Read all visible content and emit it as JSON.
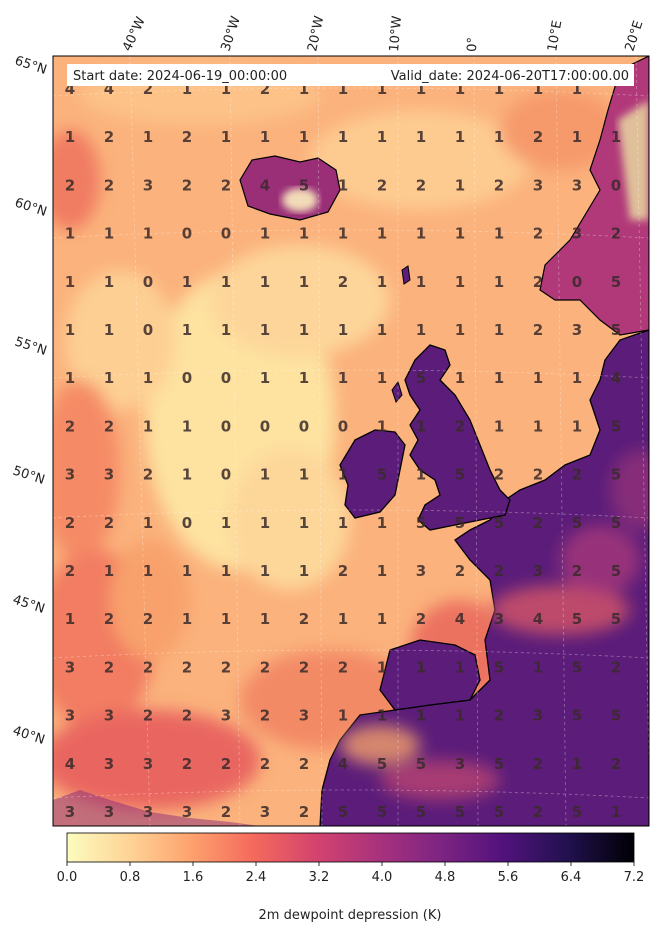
{
  "header": {
    "start_date": "Start date: 2024-06-19_00:00:00",
    "valid_date": "Valid_date: 2024-06-20T17:00:00.00"
  },
  "lon_labels": [
    "40°W",
    "30°W",
    "20°W",
    "10°W",
    "0°",
    "10°E",
    "20°E"
  ],
  "lat_labels": [
    "65°N",
    "60°N",
    "55°N",
    "50°N",
    "45°N",
    "40°N"
  ],
  "colorbar": {
    "label": "2m dewpoint depression (K)",
    "ticks": [
      "0.0",
      "0.8",
      "1.6",
      "2.4",
      "3.2",
      "4.0",
      "4.8",
      "5.6",
      "6.4",
      "7.2"
    ],
    "min": 0.0,
    "max": 7.2,
    "colormap": "magma_r"
  },
  "grid_values": [
    [
      "4",
      "4",
      "2",
      "1",
      "1",
      "2",
      "1",
      "1",
      "1",
      "1",
      "1",
      "1",
      "1",
      "1",
      ""
    ],
    [
      "1",
      "2",
      "1",
      "2",
      "1",
      "1",
      "1",
      "1",
      "1",
      "1",
      "1",
      "1",
      "2",
      "1",
      "1"
    ],
    [
      "2",
      "2",
      "3",
      "2",
      "2",
      "4",
      "5",
      "1",
      "2",
      "2",
      "1",
      "2",
      "3",
      "3",
      "0"
    ],
    [
      "1",
      "1",
      "1",
      "0",
      "0",
      "1",
      "1",
      "1",
      "1",
      "1",
      "1",
      "1",
      "2",
      "3",
      "2"
    ],
    [
      "1",
      "1",
      "0",
      "1",
      "1",
      "1",
      "1",
      "2",
      "1",
      "1",
      "1",
      "1",
      "2",
      "0",
      "5"
    ],
    [
      "1",
      "1",
      "0",
      "1",
      "1",
      "1",
      "1",
      "1",
      "1",
      "1",
      "1",
      "1",
      "2",
      "3",
      "5"
    ],
    [
      "1",
      "1",
      "1",
      "0",
      "0",
      "1",
      "1",
      "1",
      "1",
      "5",
      "1",
      "1",
      "1",
      "1",
      "4"
    ],
    [
      "2",
      "2",
      "1",
      "1",
      "0",
      "0",
      "0",
      "0",
      "1",
      "1",
      "2",
      "1",
      "1",
      "1",
      "5"
    ],
    [
      "3",
      "3",
      "2",
      "1",
      "0",
      "1",
      "1",
      "1",
      "5",
      "1",
      "5",
      "2",
      "2",
      "2",
      "5"
    ],
    [
      "2",
      "2",
      "1",
      "0",
      "1",
      "1",
      "1",
      "1",
      "1",
      "5",
      "5",
      "5",
      "2",
      "5",
      "5"
    ],
    [
      "2",
      "1",
      "1",
      "1",
      "1",
      "1",
      "1",
      "2",
      "1",
      "3",
      "2",
      "2",
      "3",
      "2",
      "5"
    ],
    [
      "1",
      "2",
      "2",
      "1",
      "1",
      "1",
      "2",
      "1",
      "1",
      "2",
      "4",
      "3",
      "4",
      "5",
      "5"
    ],
    [
      "3",
      "2",
      "2",
      "2",
      "2",
      "2",
      "2",
      "2",
      "1",
      "1",
      "1",
      "5",
      "1",
      "5",
      "2"
    ],
    [
      "3",
      "3",
      "2",
      "2",
      "3",
      "2",
      "3",
      "1",
      "1",
      "1",
      "1",
      "2",
      "3",
      "5",
      "5"
    ],
    [
      "4",
      "3",
      "3",
      "2",
      "2",
      "2",
      "2",
      "4",
      "5",
      "5",
      "3",
      "5",
      "2",
      "1",
      "2"
    ],
    [
      "3",
      "3",
      "3",
      "3",
      "2",
      "3",
      "2",
      "5",
      "5",
      "5",
      "5",
      "5",
      "2",
      "5",
      "1"
    ]
  ],
  "colors": {
    "land_dry": "#5c1d7a",
    "ocean_low": "#fde8a6",
    "coastline": "#000000",
    "header_bg": "#ffffff"
  }
}
